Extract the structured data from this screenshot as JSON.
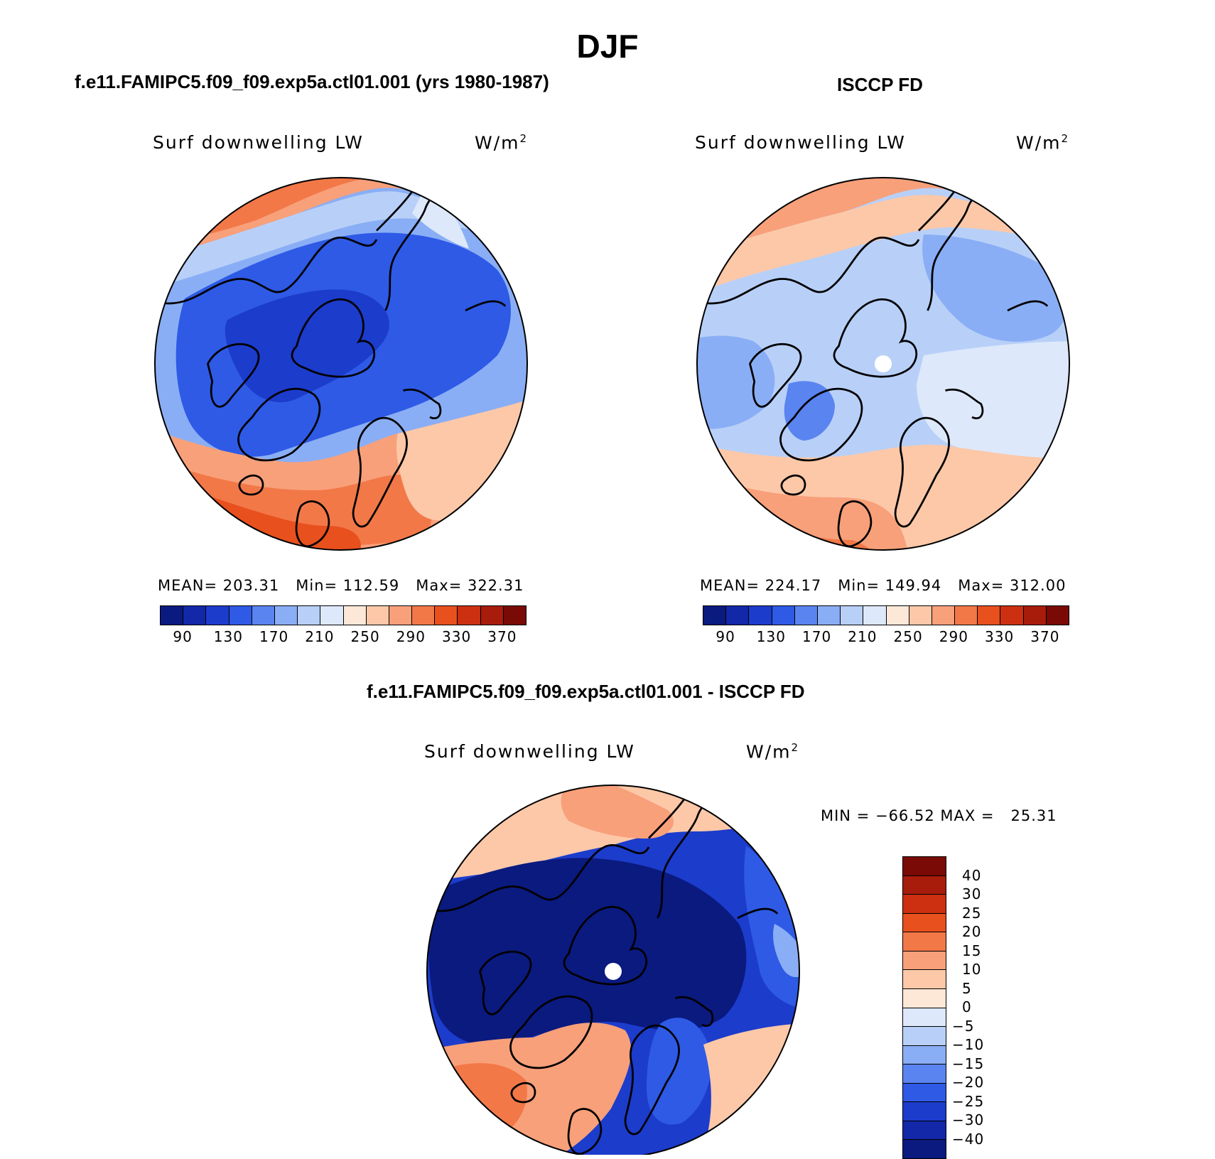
{
  "figure": {
    "season": "DJF",
    "variable": "Surf downwelling LW",
    "units": "W/m",
    "units_exp": "2"
  },
  "panels": [
    {
      "title": "f.e11.FAMIPC5.f09_f09.exp5a.ctl01.001 (yrs 1980-1987)",
      "stats_text": "MEAN= 203.31   Min= 112.59   Max= 322.31"
    },
    {
      "title": "ISCCP FD",
      "stats_text": "MEAN= 224.17   Min= 149.94   Max= 312.00"
    },
    {
      "title": "f.e11.FAMIPC5.f09_f09.exp5a.ctl01.001 - ISCCP FD",
      "stats_text": "MIN = −66.52 MAX =   25.31"
    }
  ],
  "colorbar_abs": {
    "tick_labels": [
      "90",
      "130",
      "170",
      "210",
      "250",
      "290",
      "330",
      "370"
    ],
    "colors": [
      "#0a1a7f",
      "#1228a8",
      "#1c3ccc",
      "#2e5ae6",
      "#5a84f0",
      "#8aaef5",
      "#b8d0f8",
      "#dde8fb",
      "#fde8d8",
      "#fcc8a8",
      "#f8a07a",
      "#f27848",
      "#e8501e",
      "#cc3010",
      "#a81c0c",
      "#7a0a06"
    ]
  },
  "colorbar_diff": {
    "tick_labels": [
      "40",
      "30",
      "25",
      "20",
      "15",
      "10",
      "5",
      "0",
      "−5",
      "−10",
      "−15",
      "−20",
      "−25",
      "−30",
      "−40"
    ],
    "colors": [
      "#7a0a06",
      "#a81c0c",
      "#cc3010",
      "#e8501e",
      "#f27848",
      "#f8a07a",
      "#fcc8a8",
      "#fde8d8",
      "#dde8fb",
      "#b8d0f8",
      "#8aaef5",
      "#5a84f0",
      "#2e5ae6",
      "#1c3ccc",
      "#1228a8",
      "#0a1a7f"
    ]
  }
}
